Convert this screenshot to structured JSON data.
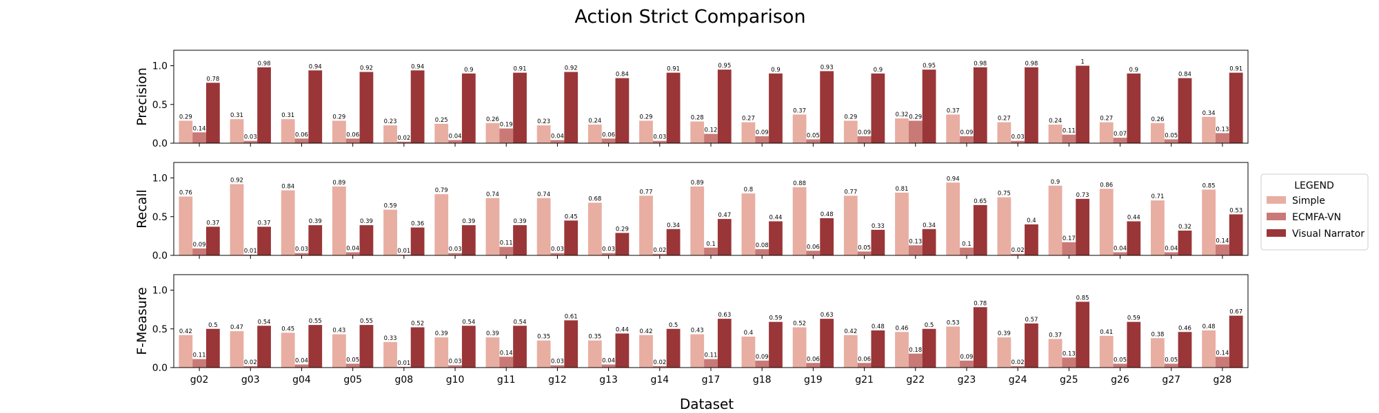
{
  "chart_data": {
    "type": "bar",
    "title": "Action Strict Comparison",
    "xlabel": "Dataset",
    "categories": [
      "g02",
      "g03",
      "g04",
      "g05",
      "g08",
      "g10",
      "g11",
      "g12",
      "g13",
      "g14",
      "g17",
      "g18",
      "g19",
      "g21",
      "g22",
      "g23",
      "g24",
      "g25",
      "g26",
      "g27",
      "g28"
    ],
    "ylim": [
      0,
      1.2
    ],
    "yticks": [
      "0.0",
      "0.5",
      "1.0"
    ],
    "legend": {
      "title": "LEGEND",
      "placement": "right",
      "entries": [
        "Simple",
        "ECMFA-VN",
        "Visual Narrator"
      ]
    },
    "colors": {
      "Simple": "#e8aea2",
      "ECMFA-VN": "#c97a76",
      "Visual Narrator": "#9a3638"
    },
    "panels": [
      {
        "ylabel": "Precision",
        "series": [
          {
            "name": "Simple",
            "values": [
              0.29,
              0.31,
              0.31,
              0.29,
              0.23,
              0.25,
              0.26,
              0.23,
              0.24,
              0.29,
              0.28,
              0.27,
              0.37,
              0.29,
              0.32,
              0.37,
              0.27,
              0.24,
              0.27,
              0.26,
              0.34
            ],
            "labels": [
              "0.29",
              "0.31",
              "0.31",
              "0.29",
              "0.23",
              "0.25",
              "0.26",
              "0.23",
              "0.24",
              "0.29",
              "0.28",
              "0.27",
              "0.37",
              "0.29",
              "0.32",
              "0.37",
              "0.27",
              "0.24",
              "0.27",
              "0.26",
              "0.34"
            ]
          },
          {
            "name": "ECMFA-VN",
            "values": [
              0.14,
              0.03,
              0.06,
              0.06,
              0.02,
              0.04,
              0.19,
              0.04,
              0.06,
              0.03,
              0.12,
              0.09,
              0.05,
              0.09,
              0.29,
              0.09,
              0.03,
              0.11,
              0.07,
              0.05,
              0.13
            ],
            "labels": [
              "0.14",
              "0.03",
              "0.06",
              "0.06",
              "0.02",
              "0.04",
              "0.19",
              "0.04",
              "0.06",
              "0.03",
              "0.12",
              "0.09",
              "0.05",
              "0.09",
              "0.29",
              "0.09",
              "0.03",
              "0.11",
              "0.07",
              "0.05",
              "0.13"
            ]
          },
          {
            "name": "Visual Narrator",
            "values": [
              0.78,
              0.98,
              0.94,
              0.92,
              0.94,
              0.9,
              0.91,
              0.92,
              0.84,
              0.91,
              0.95,
              0.9,
              0.93,
              0.9,
              0.95,
              0.98,
              0.98,
              1,
              0.9,
              0.84,
              0.91
            ],
            "labels": [
              "0.78",
              "0.98",
              "0.94",
              "0.92",
              "0.94",
              "0.9",
              "0.91",
              "0.92",
              "0.84",
              "0.91",
              "0.95",
              "0.9",
              "0.93",
              "0.9",
              "0.95",
              "0.98",
              "0.98",
              "1",
              "0.9",
              "0.84",
              "0.91"
            ]
          }
        ]
      },
      {
        "ylabel": "Recall",
        "series": [
          {
            "name": "Simple",
            "values": [
              0.76,
              0.92,
              0.84,
              0.89,
              0.59,
              0.79,
              0.74,
              0.74,
              0.68,
              0.77,
              0.89,
              0.8,
              0.88,
              0.77,
              0.81,
              0.94,
              0.75,
              0.9,
              0.86,
              0.71,
              0.85
            ],
            "labels": [
              "0.76",
              "0.92",
              "0.84",
              "0.89",
              "0.59",
              "0.79",
              "0.74",
              "0.74",
              "0.68",
              "0.77",
              "0.89",
              "0.8",
              "0.88",
              "0.77",
              "0.81",
              "0.94",
              "0.75",
              "0.9",
              "0.86",
              "0.71",
              "0.85"
            ]
          },
          {
            "name": "ECMFA-VN",
            "values": [
              0.09,
              0.01,
              0.03,
              0.04,
              0.01,
              0.03,
              0.11,
              0.03,
              0.03,
              0.02,
              0.1,
              0.08,
              0.06,
              0.05,
              0.13,
              0.1,
              0.02,
              0.17,
              0.04,
              0.04,
              0.14
            ],
            "labels": [
              "0.09",
              "0.01",
              "0.03",
              "0.04",
              "0.01",
              "0.03",
              "0.11",
              "0.03",
              "0.03",
              "0.02",
              "0.1",
              "0.08",
              "0.06",
              "0.05",
              "0.13",
              "0.1",
              "0.02",
              "0.17",
              "0.04",
              "0.04",
              "0.14"
            ]
          },
          {
            "name": "Visual Narrator",
            "values": [
              0.37,
              0.37,
              0.39,
              0.39,
              0.36,
              0.39,
              0.39,
              0.45,
              0.29,
              0.34,
              0.47,
              0.44,
              0.48,
              0.33,
              0.34,
              0.65,
              0.4,
              0.73,
              0.44,
              0.32,
              0.53
            ],
            "labels": [
              "0.37",
              "0.37",
              "0.39",
              "0.39",
              "0.36",
              "0.39",
              "0.39",
              "0.45",
              "0.29",
              "0.34",
              "0.47",
              "0.44",
              "0.48",
              "0.33",
              "0.34",
              "0.65",
              "0.4",
              "0.73",
              "0.44",
              "0.32",
              "0.53"
            ]
          }
        ]
      },
      {
        "ylabel": "F-Measure",
        "series": [
          {
            "name": "Simple",
            "values": [
              0.42,
              0.47,
              0.45,
              0.43,
              0.33,
              0.39,
              0.39,
              0.35,
              0.35,
              0.42,
              0.43,
              0.4,
              0.52,
              0.42,
              0.46,
              0.53,
              0.39,
              0.37,
              0.41,
              0.38,
              0.48
            ],
            "labels": [
              "0.42",
              "0.47",
              "0.45",
              "0.43",
              "0.33",
              "0.39",
              "0.39",
              "0.35",
              "0.35",
              "0.42",
              "0.43",
              "0.4",
              "0.52",
              "0.42",
              "0.46",
              "0.53",
              "0.39",
              "0.37",
              "0.41",
              "0.38",
              "0.48"
            ]
          },
          {
            "name": "ECMFA-VN",
            "values": [
              0.11,
              0.02,
              0.04,
              0.05,
              0.01,
              0.03,
              0.14,
              0.03,
              0.04,
              0.02,
              0.11,
              0.09,
              0.06,
              0.06,
              0.18,
              0.09,
              0.02,
              0.13,
              0.05,
              0.05,
              0.14
            ],
            "labels": [
              "0.11",
              "0.02",
              "0.04",
              "0.05",
              "0.01",
              "0.03",
              "0.14",
              "0.03",
              "0.04",
              "0.02",
              "0.11",
              "0.09",
              "0.06",
              "0.06",
              "0.18",
              "0.09",
              "0.02",
              "0.13",
              "0.05",
              "0.05",
              "0.14"
            ]
          },
          {
            "name": "Visual Narrator",
            "values": [
              0.5,
              0.54,
              0.55,
              0.55,
              0.52,
              0.54,
              0.54,
              0.61,
              0.44,
              0.5,
              0.63,
              0.59,
              0.63,
              0.48,
              0.5,
              0.78,
              0.57,
              0.85,
              0.59,
              0.46,
              0.67
            ],
            "labels": [
              "0.5",
              "0.54",
              "0.55",
              "0.55",
              "0.52",
              "0.54",
              "0.54",
              "0.61",
              "0.44",
              "0.5",
              "0.63",
              "0.59",
              "0.63",
              "0.48",
              "0.5",
              "0.78",
              "0.57",
              "0.85",
              "0.59",
              "0.46",
              "0.67"
            ]
          }
        ]
      }
    ]
  }
}
